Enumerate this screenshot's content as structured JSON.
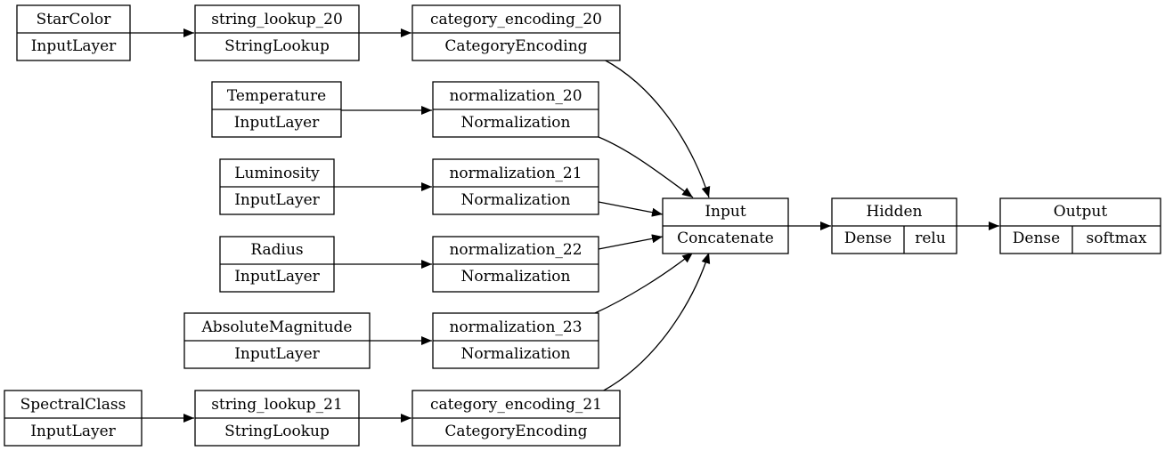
{
  "nodes": {
    "starcolor": {
      "name": "StarColor",
      "type": "InputLayer"
    },
    "string_lookup_20": {
      "name": "string_lookup_20",
      "type": "StringLookup"
    },
    "category_encoding_20": {
      "name": "category_encoding_20",
      "type": "CategoryEncoding"
    },
    "temperature": {
      "name": "Temperature",
      "type": "InputLayer"
    },
    "normalization_20": {
      "name": "normalization_20",
      "type": "Normalization"
    },
    "luminosity": {
      "name": "Luminosity",
      "type": "InputLayer"
    },
    "normalization_21": {
      "name": "normalization_21",
      "type": "Normalization"
    },
    "radius": {
      "name": "Radius",
      "type": "InputLayer"
    },
    "normalization_22": {
      "name": "normalization_22",
      "type": "Normalization"
    },
    "absolutemagnitude": {
      "name": "AbsoluteMagnitude",
      "type": "InputLayer"
    },
    "normalization_23": {
      "name": "normalization_23",
      "type": "Normalization"
    },
    "spectralclass": {
      "name": "SpectralClass",
      "type": "InputLayer"
    },
    "string_lookup_21": {
      "name": "string_lookup_21",
      "type": "StringLookup"
    },
    "category_encoding_21": {
      "name": "category_encoding_21",
      "type": "CategoryEncoding"
    },
    "input": {
      "name": "Input",
      "type": "Concatenate"
    },
    "hidden": {
      "name": "Hidden",
      "type": "Dense",
      "activation": "relu"
    },
    "output": {
      "name": "Output",
      "type": "Dense",
      "activation": "softmax"
    }
  },
  "edges": [
    [
      "starcolor",
      "string_lookup_20"
    ],
    [
      "string_lookup_20",
      "category_encoding_20"
    ],
    [
      "temperature",
      "normalization_20"
    ],
    [
      "luminosity",
      "normalization_21"
    ],
    [
      "radius",
      "normalization_22"
    ],
    [
      "absolutemagnitude",
      "normalization_23"
    ],
    [
      "spectralclass",
      "string_lookup_21"
    ],
    [
      "string_lookup_21",
      "category_encoding_21"
    ],
    [
      "category_encoding_20",
      "input"
    ],
    [
      "normalization_20",
      "input"
    ],
    [
      "normalization_21",
      "input"
    ],
    [
      "normalization_22",
      "input"
    ],
    [
      "normalization_23",
      "input"
    ],
    [
      "category_encoding_21",
      "input"
    ],
    [
      "input",
      "hidden"
    ],
    [
      "hidden",
      "output"
    ]
  ]
}
